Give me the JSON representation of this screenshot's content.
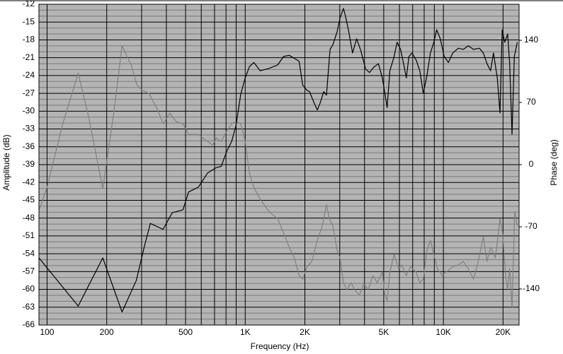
{
  "chart_data": {
    "type": "line",
    "xlabel": "Frequency (Hz)",
    "ylabel": "Amplitude (dB)",
    "y2label": "Phase (deg)",
    "xscale": "log",
    "xlim": [
      91,
      24100
    ],
    "xticks": [
      100,
      200,
      500,
      {
        "value": 1000,
        "label": "1K"
      },
      {
        "value": 2000,
        "label": "2K"
      },
      {
        "value": 5000,
        "label": "5K"
      },
      {
        "value": 10000,
        "label": "10K"
      },
      {
        "value": 20000,
        "label": "20K"
      }
    ],
    "xminor_ticks": [
      300,
      400,
      600,
      700,
      800,
      900,
      3000,
      4000,
      6000,
      7000,
      8000,
      9000
    ],
    "ylim": [
      -66,
      -12
    ],
    "yticks": [
      -12,
      -15,
      -18,
      -21,
      -24,
      -27,
      -30,
      -33,
      -36,
      -39,
      -42,
      -45,
      -48,
      -51,
      -54,
      -57,
      -60,
      -63,
      -66
    ],
    "y2lim": [
      -180.6,
      180.6
    ],
    "y2ticks": [
      140,
      70,
      0,
      -70,
      -140
    ],
    "grid": true,
    "background": "#b4b4b4",
    "series": [
      {
        "color": "#000000",
        "x": [
          91,
          143.6,
          191,
          239,
          282,
          309,
          332,
          385,
          428,
          485,
          518,
          580,
          646,
          714,
          756,
          808,
          854,
          897,
          950,
          1000,
          1050,
          1105,
          1190,
          1320,
          1460,
          1560,
          1667,
          1790,
          1870,
          1950,
          2050,
          2110,
          2220,
          2310,
          2390,
          2490,
          2570,
          2680,
          2770,
          2910,
          3010,
          3130,
          3200,
          3330,
          3480,
          3650,
          3830,
          4050,
          4240,
          4450,
          4700,
          4920,
          5050,
          5200,
          5370,
          5640,
          5840,
          6080,
          6280,
          6500,
          6700,
          6940,
          7290,
          7600,
          7920,
          8250,
          8600,
          8950,
          9250,
          9640,
          10100,
          10600,
          11150,
          11900,
          12600,
          13350,
          14200,
          15200,
          15900,
          16600,
          17300,
          17900,
          18700,
          19300,
          19800,
          20400,
          21100,
          21600,
          22200,
          22800,
          23600
        ],
        "values": [
          -54.7,
          -62.8,
          -54.7,
          -63.8,
          -58.5,
          -52.9,
          -48.9,
          -49.9,
          -47.1,
          -46.6,
          -43.6,
          -42.8,
          -40.4,
          -39.5,
          -39.3,
          -36.7,
          -35.1,
          -32.5,
          -27.1,
          -24.4,
          -22.5,
          -21.8,
          -23.2,
          -22.8,
          -22.2,
          -20.8,
          -20.6,
          -21.2,
          -21.6,
          -25.6,
          -26.5,
          -26.7,
          -28.5,
          -29.8,
          -28.6,
          -26.7,
          -27.3,
          -19.6,
          -18.8,
          -16.6,
          -14.3,
          -12.7,
          -13.9,
          -16.6,
          -20.2,
          -17.8,
          -19.8,
          -22.9,
          -23.5,
          -22.6,
          -22.0,
          -24.4,
          -26.7,
          -29.4,
          -23.2,
          -20.8,
          -18.4,
          -19.6,
          -21.8,
          -24.4,
          -20.8,
          -20.2,
          -21.4,
          -23.2,
          -27.0,
          -24.1,
          -20.2,
          -18.4,
          -16.3,
          -17.8,
          -20.8,
          -21.8,
          -20.2,
          -19.4,
          -19.6,
          -19.0,
          -19.6,
          -19.4,
          -20.2,
          -22.0,
          -23.2,
          -20.2,
          -24.4,
          -30.3,
          -16.3,
          -18.4,
          -17.0,
          -22.0,
          -33.9,
          -20.8,
          -18.4
        ]
      },
      {
        "color": "#808080",
        "axis": "y2",
        "x": [
          91,
          100,
          120,
          143.6,
          162,
          191,
          217,
          239,
          266,
          284,
          301,
          327,
          361,
          385,
          417,
          447,
          485,
          518,
          580,
          646,
          685,
          714,
          756,
          808,
          854,
          897,
          950,
          1000,
          1050,
          1105,
          1190,
          1320,
          1460,
          1560,
          1667,
          1770,
          1870,
          1950,
          2050,
          2170,
          2310,
          2450,
          2570,
          2660,
          2770,
          2910,
          3010,
          3130,
          3260,
          3420,
          3590,
          3770,
          3970,
          4170,
          4410,
          4640,
          4920,
          5050,
          5200,
          5370,
          5640,
          5940,
          6180,
          6500,
          6820,
          7290,
          7600,
          7920,
          8250,
          8600,
          8950,
          9320,
          9860,
          10300,
          11150,
          11900,
          12600,
          13350,
          14200,
          15200,
          15900,
          16600,
          17300,
          18300,
          19300,
          19900,
          20600,
          21100,
          21600,
          22200,
          22900,
          23600
        ],
        "values": [
          -51.7,
          -25.5,
          46,
          103,
          54,
          -27,
          58,
          134,
          112,
          90,
          84,
          80,
          62,
          46,
          58,
          48.5,
          46,
          34,
          34,
          26,
          22,
          30,
          26,
          38,
          46,
          48.5,
          46,
          26,
          -9.5,
          -25.5,
          -39,
          -53,
          -61,
          -77,
          -93,
          -105,
          -125,
          -129,
          -115,
          -109,
          -85,
          -69,
          -45,
          -61,
          -69,
          -97,
          -105,
          -133,
          -141,
          -133,
          -142,
          -147,
          -134,
          -141,
          -125,
          -133,
          -121,
          -145,
          -153,
          -121,
          -101,
          -117,
          -113,
          -125,
          -115,
          -121,
          -133,
          -129,
          -97,
          -85,
          -101,
          -117,
          -125,
          -121,
          -115,
          -113,
          -109,
          -117,
          -129,
          -103,
          -81,
          -109,
          -93,
          -105,
          -61,
          -77,
          -125,
          -141,
          -117,
          -161,
          -53,
          -69
        ]
      }
    ]
  }
}
